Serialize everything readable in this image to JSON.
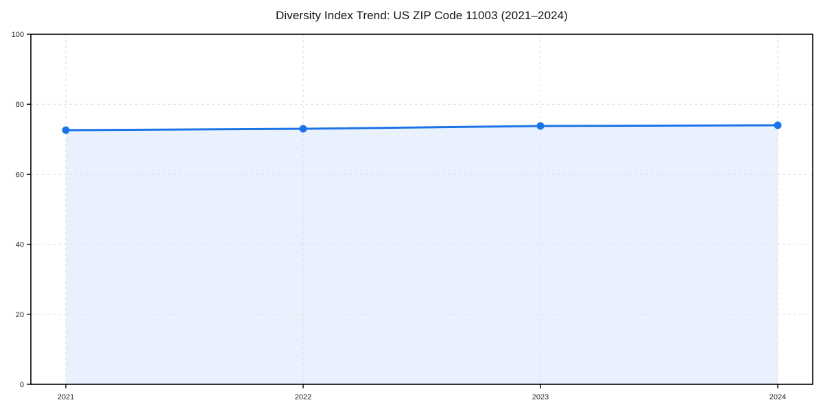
{
  "chart_data": {
    "type": "line",
    "title": "Diversity Index Trend: US ZIP Code 11003 (2021–2024)",
    "x": [
      "2021",
      "2022",
      "2023",
      "2024"
    ],
    "series": [
      {
        "name": "Diversity Index",
        "values": [
          72.6,
          73.0,
          73.8,
          74.0
        ]
      }
    ],
    "xlabel": "",
    "ylabel": "",
    "ylim": [
      0,
      100
    ],
    "yticks": [
      0,
      20,
      40,
      60,
      80,
      100
    ],
    "grid": "dashed, horizontal and vertical",
    "legend": "none",
    "style": {
      "line_color": "#1a73e8",
      "marker_color": "#1a73e8",
      "area_fill_color": "#1a73e8",
      "area_fill_opacity": 0.1,
      "grid_color": "#dedede",
      "spine_color": "#000000",
      "background_color": "#ffffff"
    }
  }
}
